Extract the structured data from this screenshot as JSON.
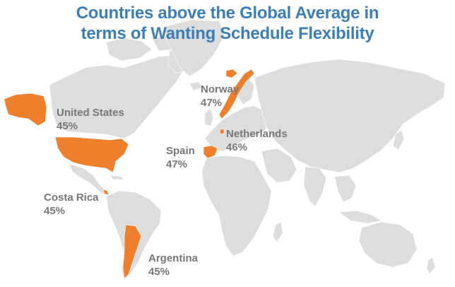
{
  "title": {
    "line1": "Countries above the Global Average in",
    "line2": "terms of Wanting Schedule Flexibility"
  },
  "colors": {
    "highlight": "#ee7f2d",
    "land": "#dddddd",
    "title": "#3d7eb4",
    "label": "#777777"
  },
  "countries": [
    {
      "name": "United States",
      "value": "45%"
    },
    {
      "name": "Norway",
      "value": "47%"
    },
    {
      "name": "Netherlands",
      "value": "46%"
    },
    {
      "name": "Spain",
      "value": "47%"
    },
    {
      "name": "Costa Rica",
      "value": "45%"
    },
    {
      "name": "Argentina",
      "value": "45%"
    }
  ]
}
